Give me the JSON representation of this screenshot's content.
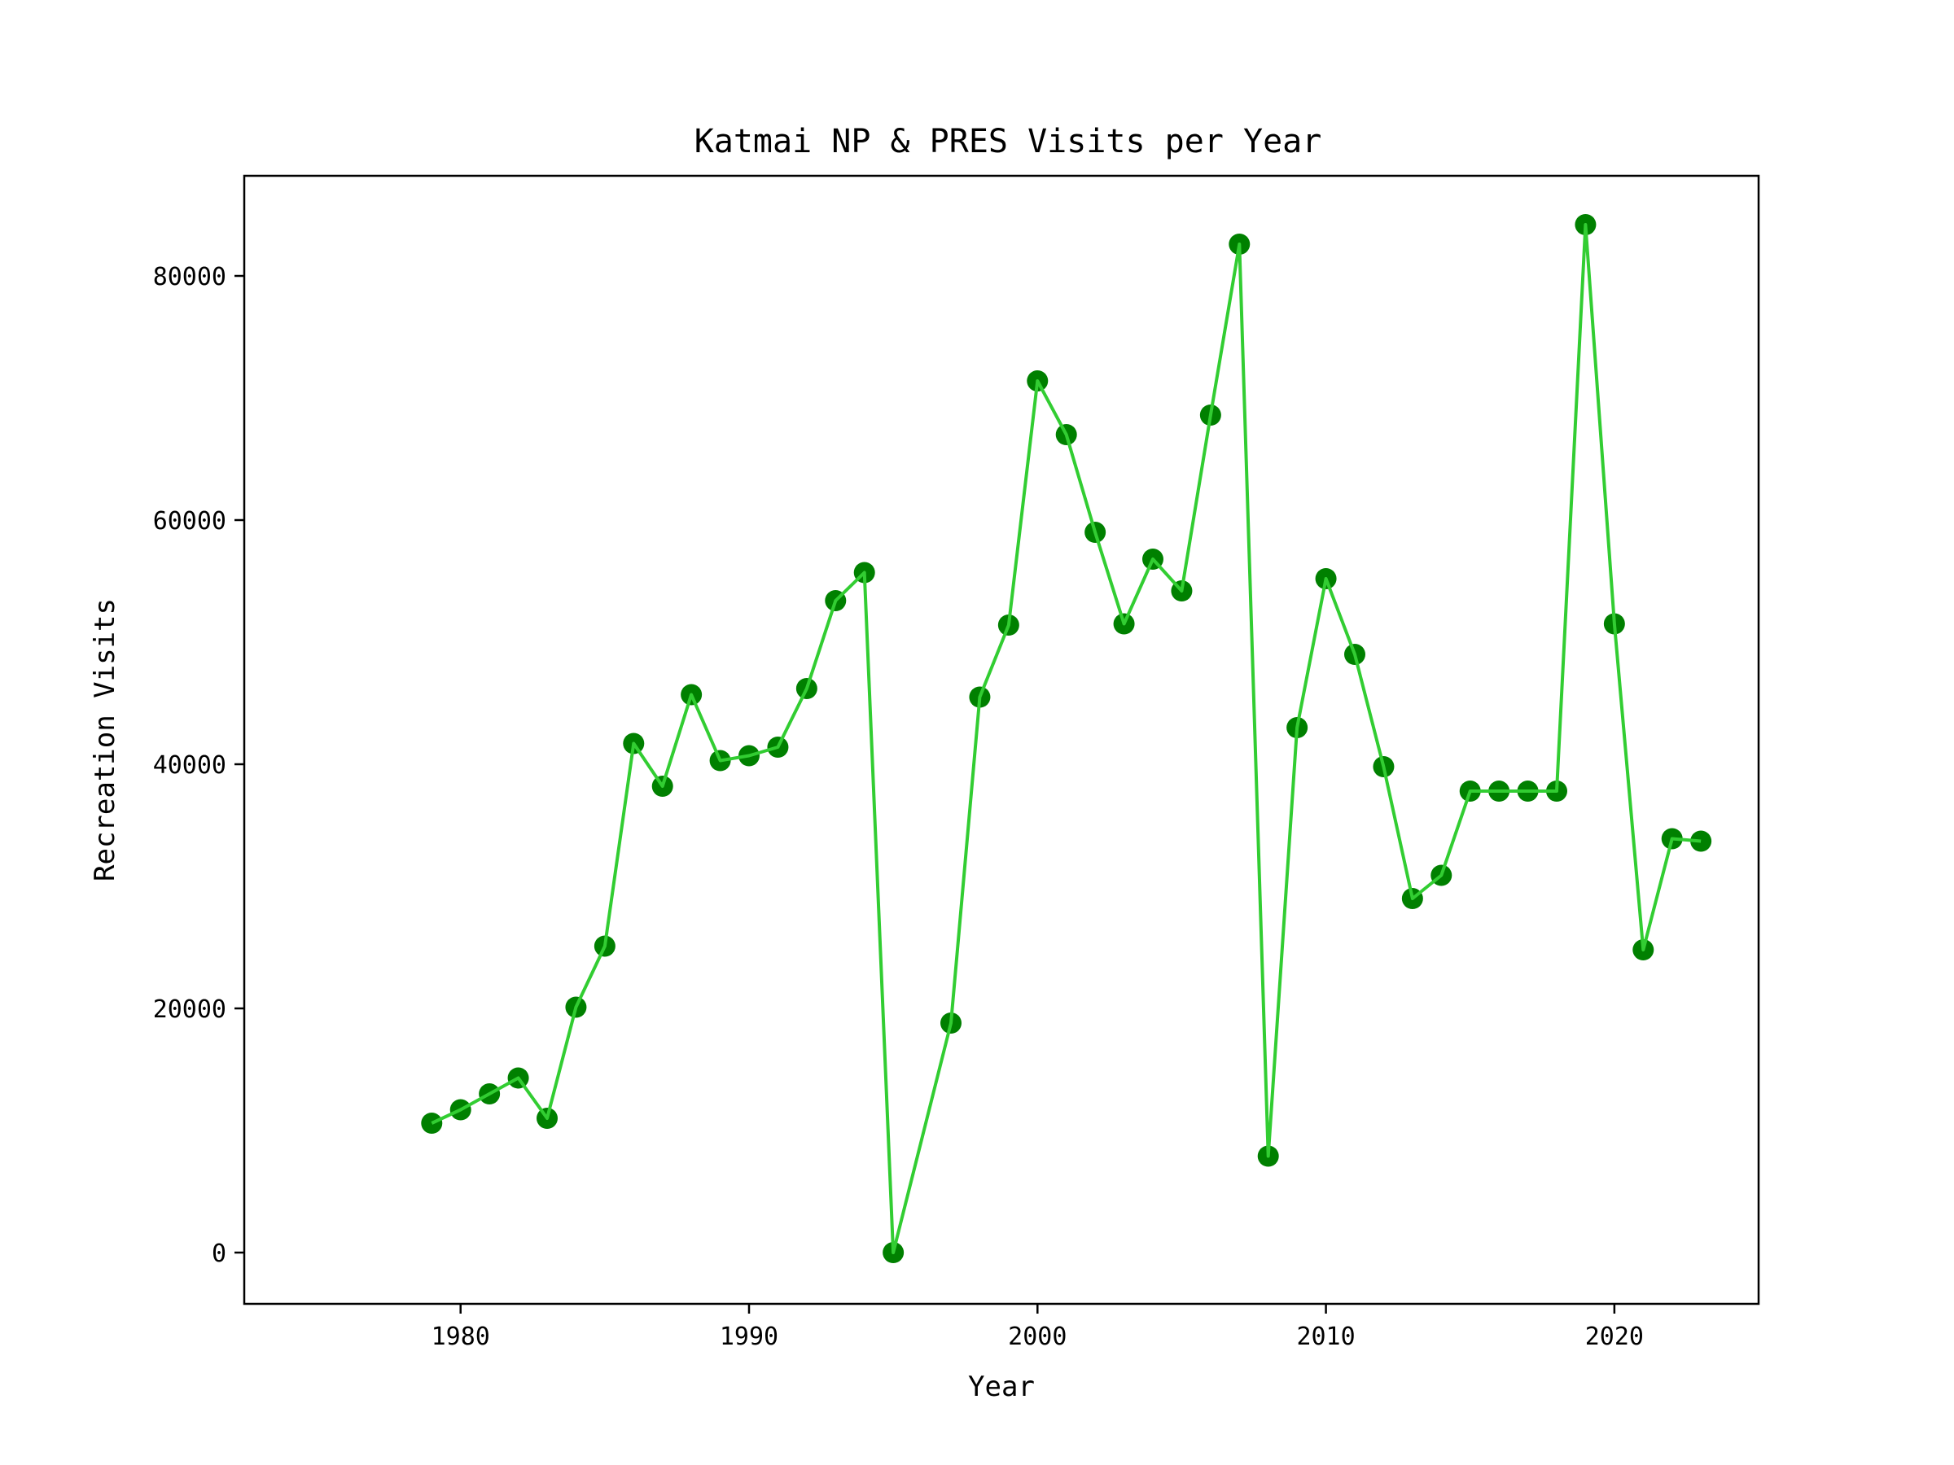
{
  "chart_data": {
    "type": "line",
    "title": "Katmai NP & PRES Visits per Year",
    "xlabel": "Year",
    "ylabel": "Recreation Visits",
    "xlim": [
      1972.5,
      2025
    ],
    "ylim": [
      -4200,
      88200
    ],
    "xticks": [
      1980,
      1990,
      2000,
      2010,
      2020
    ],
    "yticks": [
      0,
      20000,
      40000,
      60000,
      80000
    ],
    "grid": false,
    "legend": "none",
    "line_color": "#32cd32",
    "marker_color": "#008000",
    "series": [
      {
        "x": [
          1979,
          1980,
          1981,
          1982,
          1983,
          1984,
          1985,
          1986,
          1987,
          1988,
          1989,
          1990,
          1991,
          1992,
          1993,
          1994,
          1995,
          1997,
          1998,
          1999,
          2000,
          2001,
          2002,
          2003,
          2004,
          2005,
          2006,
          2007,
          2008,
          2009,
          2010,
          2011,
          2012,
          2013,
          2014,
          2015,
          2016,
          2017,
          2018,
          2019,
          2020,
          2021,
          2022,
          2023
        ],
        "values": [
          10600,
          11700,
          13000,
          14300,
          11000,
          20100,
          25100,
          41700,
          38200,
          45700,
          40300,
          40700,
          41400,
          46200,
          53400,
          55700,
          0,
          18800,
          45500,
          51400,
          71400,
          67000,
          59000,
          51500,
          56800,
          54200,
          68600,
          82600,
          7900,
          43000,
          55200,
          49000,
          39800,
          29000,
          30900,
          37800,
          37800,
          37800,
          37800,
          84200,
          51500,
          24800,
          33900,
          33700
        ]
      }
    ]
  }
}
